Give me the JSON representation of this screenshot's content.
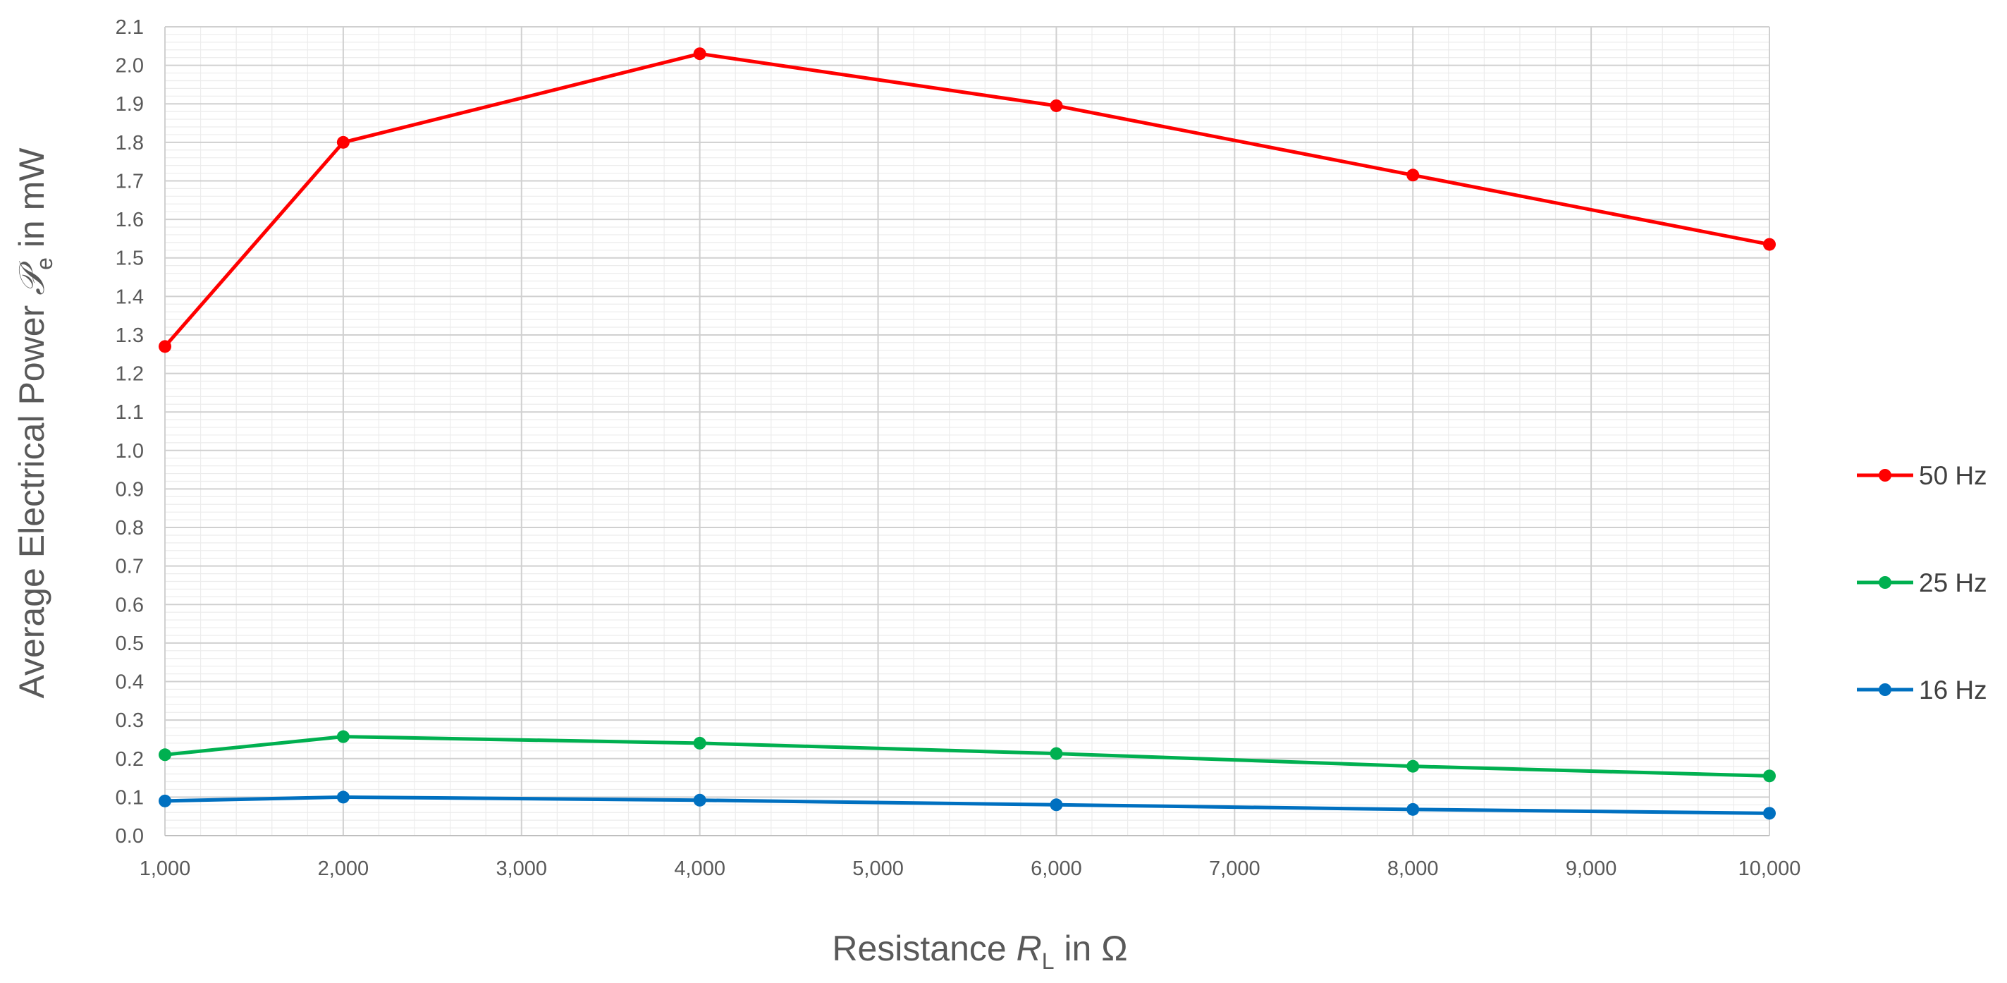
{
  "chart_data": {
    "type": "line",
    "x_axis": {
      "label_prefix": "Resistance ",
      "label_symbol": "R",
      "label_subscript": "L",
      "label_suffix": " in Ω",
      "ticks": [
        "1,000",
        "2,000",
        "3,000",
        "4,000",
        "5,000",
        "6,000",
        "7,000",
        "8,000",
        "9,000",
        "10,000"
      ],
      "xlim": [
        1000,
        10000
      ]
    },
    "y_axis": {
      "label_prefix": "Average Electrical Power ",
      "label_symbol": "𝒫",
      "label_subscript": "e",
      "label_suffix": " in mW",
      "ticks": [
        "0.0",
        "0.1",
        "0.2",
        "0.3",
        "0.4",
        "0.5",
        "0.6",
        "0.7",
        "0.8",
        "0.9",
        "1.0",
        "1.1",
        "1.2",
        "1.3",
        "1.4",
        "1.5",
        "1.6",
        "1.7",
        "1.8",
        "1.9",
        "2.0",
        "2.1"
      ],
      "ylim": [
        0,
        2.1
      ]
    },
    "grid": true,
    "legend_position": "right",
    "x": [
      1000,
      2000,
      4000,
      6000,
      8000,
      10000
    ],
    "series": [
      {
        "name": "50 Hz",
        "color": "#ff0000",
        "values": [
          1.27,
          1.8,
          2.03,
          1.895,
          1.715,
          1.535
        ]
      },
      {
        "name": "25 Hz",
        "color": "#00b050",
        "values": [
          0.21,
          0.257,
          0.24,
          0.213,
          0.18,
          0.155
        ]
      },
      {
        "name": "16 Hz",
        "color": "#0070c0",
        "values": [
          0.09,
          0.1,
          0.092,
          0.08,
          0.068,
          0.058
        ]
      }
    ]
  }
}
